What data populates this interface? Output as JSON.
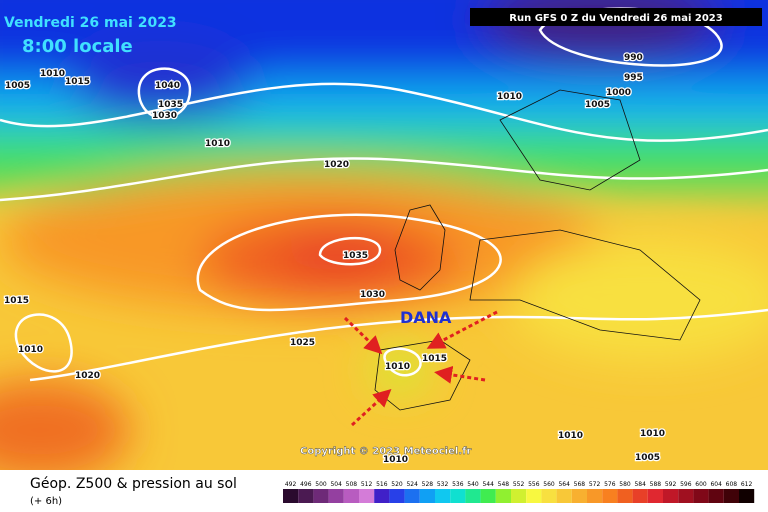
{
  "header": {
    "date": "Vendredi 26 mai 2023",
    "time": "8:00 locale",
    "run": "Run GFS 0 Z du Vendredi 26 mai 2023"
  },
  "annotation": "DANA",
  "copyright": "Copyright © 2023 Meteociel.fr",
  "isobar_labels": [
    "1005",
    "1010",
    "1015",
    "1040",
    "1035",
    "1030",
    "990",
    "995",
    "1000",
    "1010",
    "1005",
    "1010",
    "1020",
    "1035",
    "1030",
    "1025",
    "1015",
    "1010",
    "1015",
    "1010",
    "1020",
    "1010",
    "1010",
    "1005",
    "1010"
  ],
  "footer": {
    "title": "Géop. Z500 & pression au sol",
    "step": "(+ 6h)"
  },
  "legend": {
    "labels": [
      "492",
      "496",
      "500",
      "504",
      "508",
      "512",
      "516",
      "520",
      "524",
      "528",
      "532",
      "536",
      "540",
      "544",
      "548",
      "552",
      "556",
      "560",
      "564",
      "568",
      "572",
      "576",
      "580",
      "584",
      "588",
      "592",
      "596",
      "600",
      "604",
      "608",
      "612"
    ],
    "colors": [
      "#2a0a2e",
      "#4b1a52",
      "#6e2a78",
      "#9440a0",
      "#b85cc0",
      "#d47cd8",
      "#4020c8",
      "#2840e8",
      "#1c70f0",
      "#10a0f4",
      "#10c8f0",
      "#10e0d0",
      "#20e890",
      "#40ec50",
      "#90f030",
      "#d0f030",
      "#f8f840",
      "#f8e040",
      "#f8c838",
      "#f8b030",
      "#f89828",
      "#f88020",
      "#f06020",
      "#e84028",
      "#e02830",
      "#c01828",
      "#a01020",
      "#800818",
      "#600410",
      "#400208",
      "#100000"
    ]
  }
}
